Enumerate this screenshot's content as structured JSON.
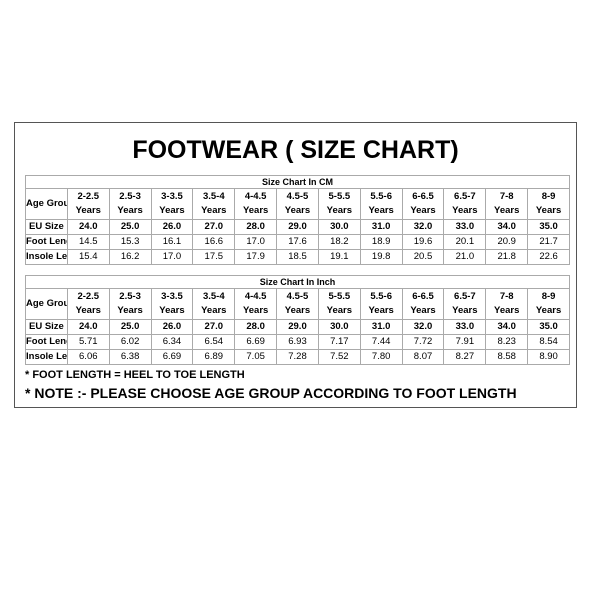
{
  "title": "FOOTWEAR ( SIZE CHART)",
  "tables": [
    {
      "caption": "Size Chart In CM",
      "age_label": "Age Group",
      "ages": [
        [
          "2-2.5",
          "Years"
        ],
        [
          "2.5-3",
          "Years"
        ],
        [
          "3-3.5",
          "Years"
        ],
        [
          "3.5-4",
          "Years"
        ],
        [
          "4-4.5",
          "Years"
        ],
        [
          "4.5-5",
          "Years"
        ],
        [
          "5-5.5",
          "Years"
        ],
        [
          "5.5-6",
          "Years"
        ],
        [
          "6-6.5",
          "Years"
        ],
        [
          "6.5-7",
          "Years"
        ],
        [
          "7-8",
          "Years"
        ],
        [
          "8-9",
          "Years"
        ]
      ],
      "rows": [
        {
          "label": "EU Size",
          "bold": true,
          "values": [
            "24.0",
            "25.0",
            "26.0",
            "27.0",
            "28.0",
            "29.0",
            "30.0",
            "31.0",
            "32.0",
            "33.0",
            "34.0",
            "35.0"
          ]
        },
        {
          "label": "Foot Length",
          "bold": false,
          "values": [
            "14.5",
            "15.3",
            "16.1",
            "16.6",
            "17.0",
            "17.6",
            "18.2",
            "18.9",
            "19.6",
            "20.1",
            "20.9",
            "21.7"
          ]
        },
        {
          "label": "Insole Length",
          "bold": false,
          "values": [
            "15.4",
            "16.2",
            "17.0",
            "17.5",
            "17.9",
            "18.5",
            "19.1",
            "19.8",
            "20.5",
            "21.0",
            "21.8",
            "22.6"
          ]
        }
      ]
    },
    {
      "caption": "Size Chart In Inch",
      "age_label": "Age Group",
      "ages": [
        [
          "2-2.5",
          "Years"
        ],
        [
          "2.5-3",
          "Years"
        ],
        [
          "3-3.5",
          "Years"
        ],
        [
          "3.5-4",
          "Years"
        ],
        [
          "4-4.5",
          "Years"
        ],
        [
          "4.5-5",
          "Years"
        ],
        [
          "5-5.5",
          "Years"
        ],
        [
          "5.5-6",
          "Years"
        ],
        [
          "6-6.5",
          "Years"
        ],
        [
          "6.5-7",
          "Years"
        ],
        [
          "7-8",
          "Years"
        ],
        [
          "8-9",
          "Years"
        ]
      ],
      "rows": [
        {
          "label": "EU Size",
          "bold": true,
          "values": [
            "24.0",
            "25.0",
            "26.0",
            "27.0",
            "28.0",
            "29.0",
            "30.0",
            "31.0",
            "32.0",
            "33.0",
            "34.0",
            "35.0"
          ]
        },
        {
          "label": "Foot Length",
          "bold": false,
          "values": [
            "5.71",
            "6.02",
            "6.34",
            "6.54",
            "6.69",
            "6.93",
            "7.17",
            "7.44",
            "7.72",
            "7.91",
            "8.23",
            "8.54"
          ]
        },
        {
          "label": "Insole Length",
          "bold": false,
          "values": [
            "6.06",
            "6.38",
            "6.69",
            "6.89",
            "7.05",
            "7.28",
            "7.52",
            "7.80",
            "8.07",
            "8.27",
            "8.58",
            "8.90"
          ]
        }
      ]
    }
  ],
  "notes": {
    "foot_length": "* FOOT LENGTH = HEEL TO TOE LENGTH",
    "choose": "* NOTE :- PLEASE CHOOSE AGE GROUP ACCORDING TO FOOT LENGTH"
  }
}
